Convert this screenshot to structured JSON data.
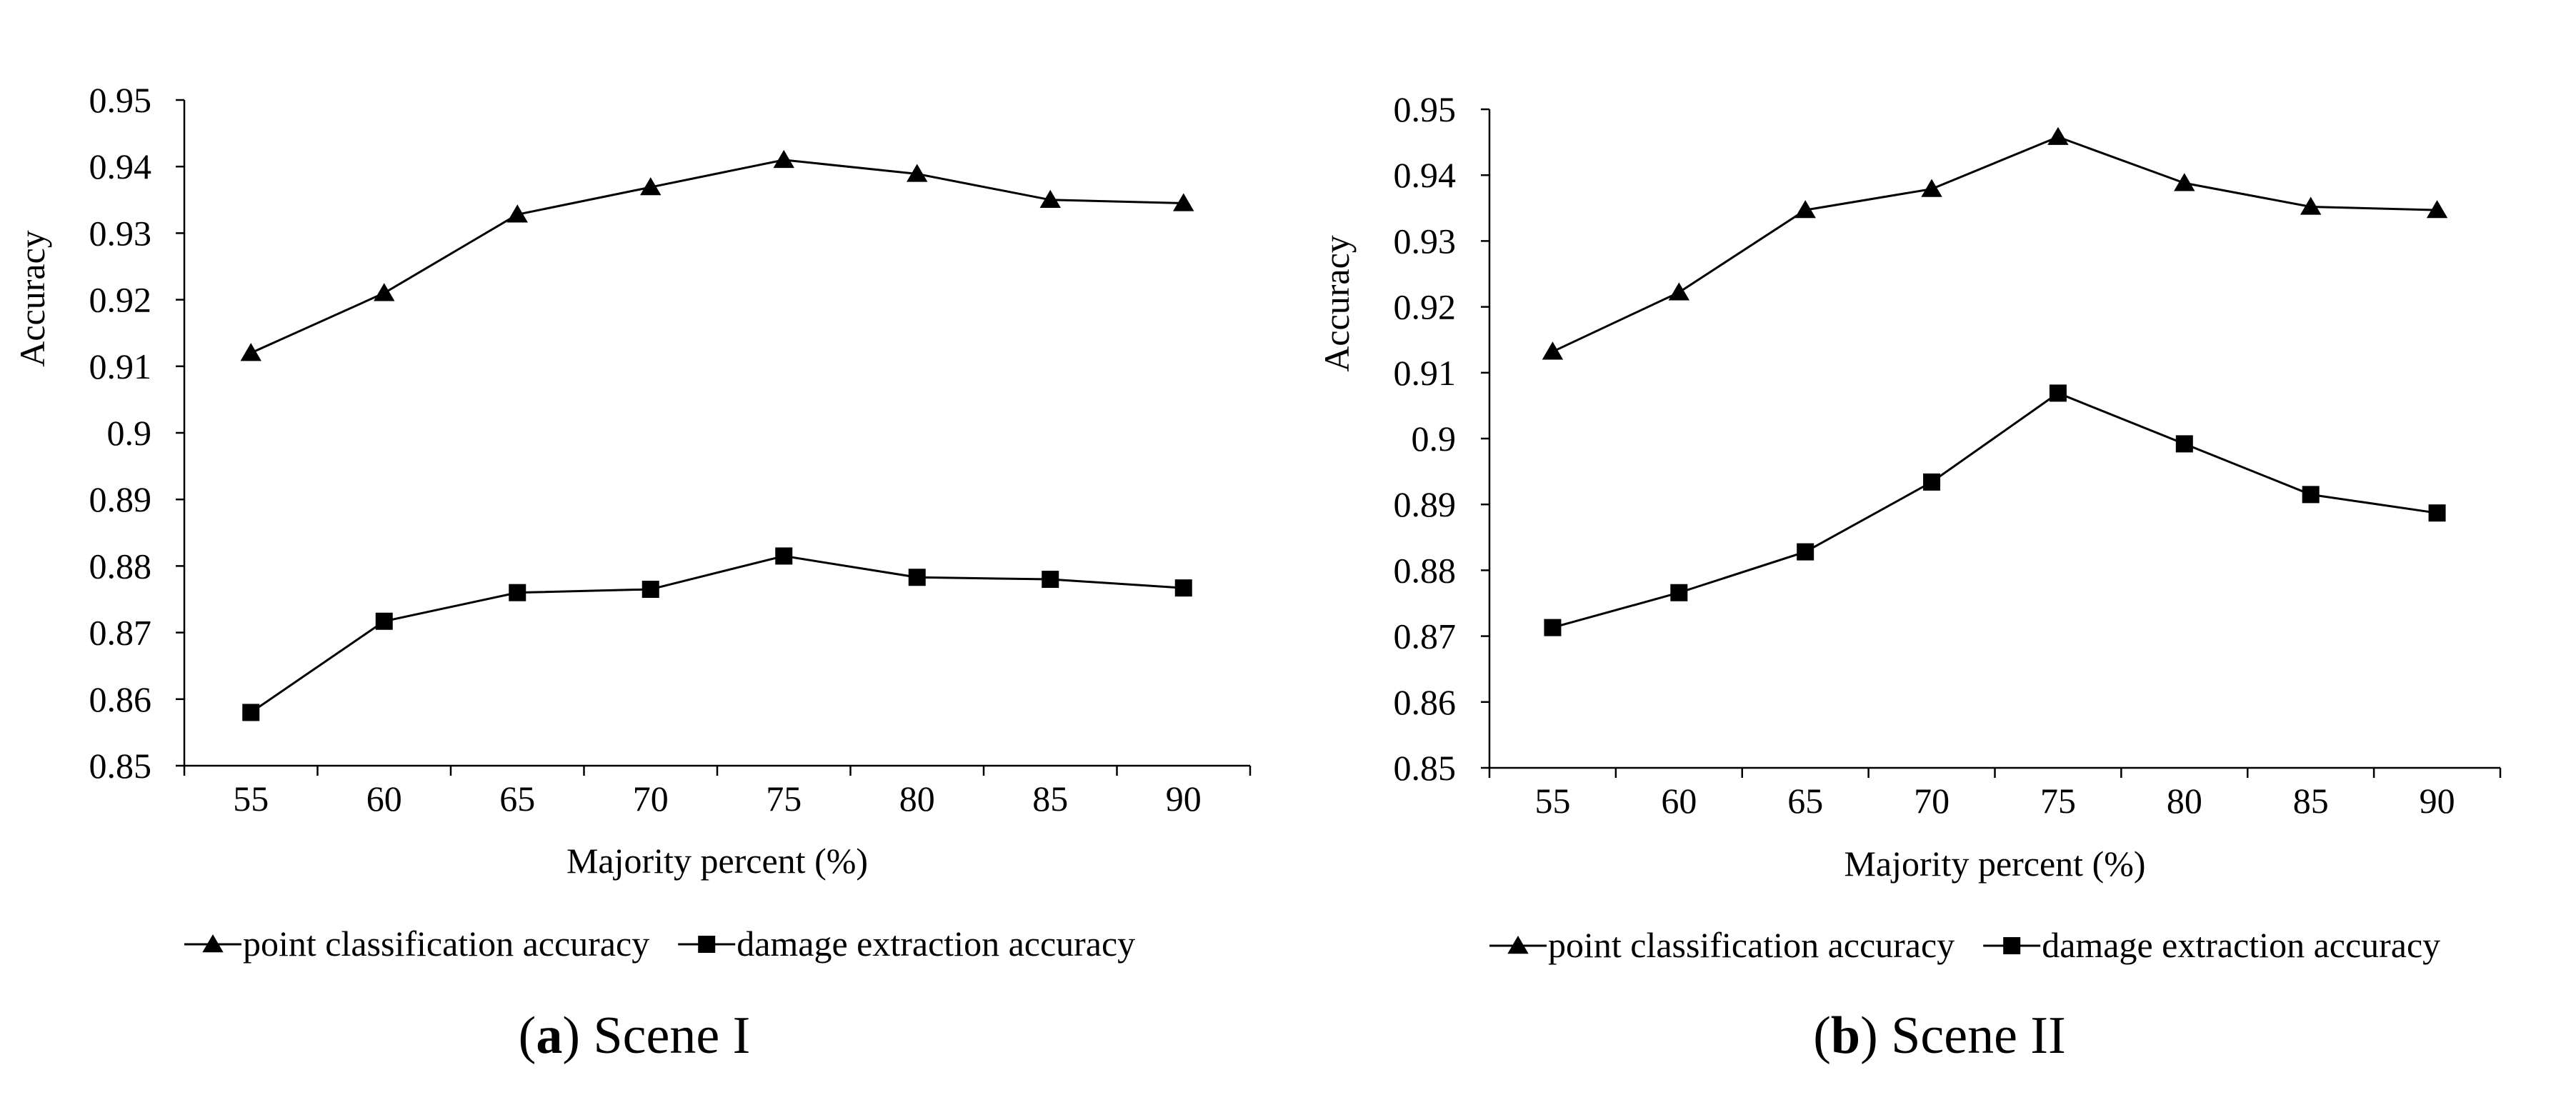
{
  "chart_data": [
    {
      "type": "line",
      "caption": {
        "letter": "a",
        "text": "Scene I"
      },
      "xlabel": "Majority percent (%)",
      "ylabel": "Accuracy",
      "categories": [
        "55",
        "60",
        "65",
        "70",
        "75",
        "80",
        "85",
        "90"
      ],
      "y_ticks": [
        "0.85",
        "0.86",
        "0.87",
        "0.88",
        "0.89",
        "0.9",
        "0.91",
        "0.92",
        "0.93",
        "0.94",
        "0.95"
      ],
      "ylim": [
        0.85,
        0.95
      ],
      "grid": false,
      "legend_position": "bottom",
      "series": [
        {
          "name": "point classification accuracy",
          "marker": "triangle",
          "values": [
            0.912,
            0.921,
            0.9328,
            0.9369,
            0.941,
            0.9389,
            0.935,
            0.9345
          ]
        },
        {
          "name": "damage extraction accuracy",
          "marker": "square",
          "values": [
            0.858,
            0.8717,
            0.876,
            0.8765,
            0.8815,
            0.8783,
            0.878,
            0.8767
          ]
        }
      ]
    },
    {
      "type": "line",
      "caption": {
        "letter": "b",
        "text": "Scene II"
      },
      "xlabel": "Majority percent (%)",
      "ylabel": "Accuracy",
      "categories": [
        "55",
        "60",
        "65",
        "70",
        "75",
        "80",
        "85",
        "90"
      ],
      "y_ticks": [
        "0.85",
        "0.86",
        "0.87",
        "0.88",
        "0.89",
        "0.9",
        "0.91",
        "0.92",
        "0.93",
        "0.94",
        "0.95"
      ],
      "ylim": [
        0.85,
        0.95
      ],
      "grid": false,
      "legend_position": "bottom",
      "series": [
        {
          "name": "point classification accuracy",
          "marker": "triangle",
          "values": [
            0.9132,
            0.9222,
            0.9347,
            0.9379,
            0.9458,
            0.9388,
            0.9352,
            0.9347
          ]
        },
        {
          "name": "damage extraction accuracy",
          "marker": "square",
          "values": [
            0.8713,
            0.8766,
            0.8828,
            0.8934,
            0.9069,
            0.8992,
            0.8915,
            0.8887
          ]
        }
      ]
    }
  ]
}
